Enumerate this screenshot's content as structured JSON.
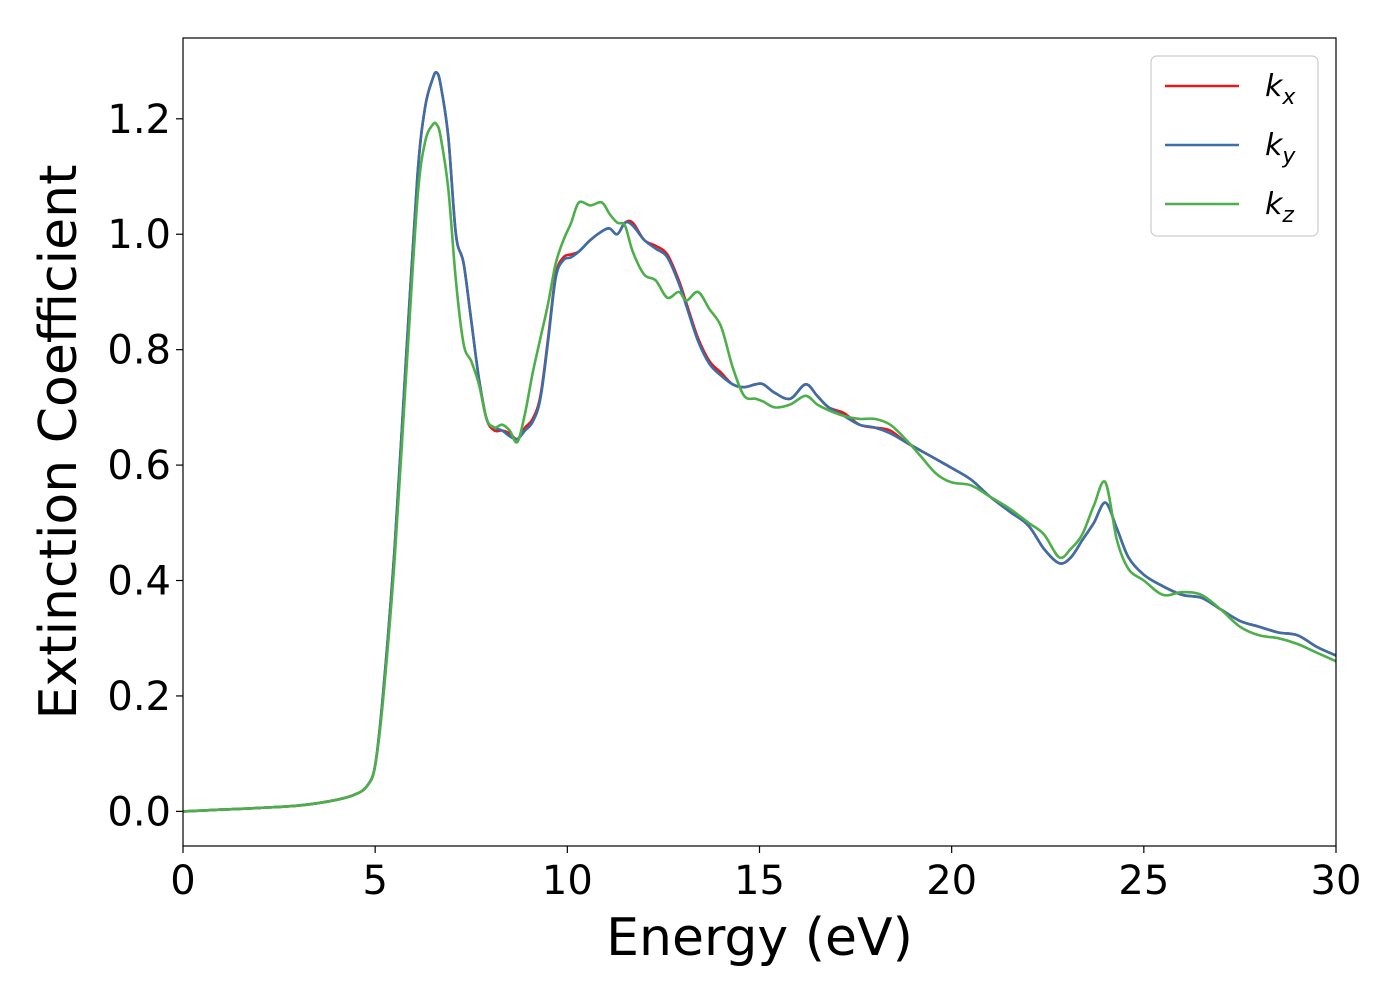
{
  "chart_data": {
    "type": "line",
    "title": "",
    "xlabel": "Energy (eV)",
    "ylabel": "Extinction Coefficient",
    "xlim": [
      0,
      30
    ],
    "ylim": [
      -0.06,
      1.34
    ],
    "xticks": [
      0,
      5,
      10,
      15,
      20,
      25,
      30
    ],
    "xtick_labels": [
      "0",
      "5",
      "10",
      "15",
      "20",
      "25",
      "30"
    ],
    "yticks": [
      0.0,
      0.2,
      0.4,
      0.6,
      0.8,
      1.0,
      1.2
    ],
    "ytick_labels": [
      "0.0",
      "0.2",
      "0.4",
      "0.6",
      "0.8",
      "1.0",
      "1.2"
    ],
    "grid": false,
    "legend_position": "top-right",
    "series": [
      {
        "name": "k",
        "name_sub": "x",
        "color": "#e41a1c",
        "x": [
          0,
          1,
          2,
          3,
          4,
          4.5,
          4.8,
          5.0,
          5.2,
          5.5,
          5.8,
          6.1,
          6.3,
          6.5,
          6.6,
          6.7,
          6.9,
          7.1,
          7.3,
          7.5,
          7.7,
          7.9,
          8.1,
          8.3,
          8.5,
          8.7,
          8.9,
          9.1,
          9.3,
          9.5,
          9.7,
          9.9,
          10.1,
          10.3,
          10.6,
          10.9,
          11.1,
          11.3,
          11.5,
          11.7,
          12.0,
          12.3,
          12.6,
          12.9,
          13.1,
          13.4,
          13.7,
          14.0,
          14.3,
          14.6,
          14.9,
          15.1,
          15.4,
          15.8,
          16.2,
          16.5,
          16.8,
          17.2,
          17.6,
          18.0,
          18.4,
          18.8,
          19.2,
          19.6,
          20.0,
          20.5,
          21.0,
          21.5,
          22.0,
          22.4,
          22.8,
          23.1,
          23.4,
          23.7,
          24.0,
          24.3,
          24.6,
          25.0,
          25.5,
          26.0,
          26.5,
          27.0,
          27.5,
          28.0,
          28.5,
          29.0,
          29.5,
          30.0
        ],
        "y": [
          0.0,
          0.003,
          0.006,
          0.01,
          0.02,
          0.03,
          0.045,
          0.08,
          0.2,
          0.45,
          0.78,
          1.1,
          1.22,
          1.27,
          1.28,
          1.26,
          1.17,
          1.0,
          0.95,
          0.85,
          0.75,
          0.68,
          0.66,
          0.66,
          0.655,
          0.645,
          0.665,
          0.68,
          0.72,
          0.82,
          0.93,
          0.96,
          0.965,
          0.97,
          0.99,
          1.005,
          1.01,
          1.0,
          1.02,
          1.02,
          0.99,
          0.98,
          0.965,
          0.92,
          0.88,
          0.82,
          0.78,
          0.76,
          0.74,
          0.735,
          0.74,
          0.74,
          0.725,
          0.715,
          0.74,
          0.72,
          0.7,
          0.69,
          0.67,
          0.665,
          0.66,
          0.64,
          0.625,
          0.61,
          0.595,
          0.575,
          0.545,
          0.52,
          0.495,
          0.455,
          0.43,
          0.44,
          0.47,
          0.5,
          0.535,
          0.49,
          0.44,
          0.41,
          0.39,
          0.375,
          0.37,
          0.35,
          0.33,
          0.32,
          0.31,
          0.305,
          0.285,
          0.27
        ]
      },
      {
        "name": "k",
        "name_sub": "y",
        "color": "#3a6fa8",
        "x": [
          0,
          1,
          2,
          3,
          4,
          4.5,
          4.8,
          5.0,
          5.2,
          5.5,
          5.8,
          6.1,
          6.3,
          6.5,
          6.6,
          6.7,
          6.9,
          7.1,
          7.3,
          7.5,
          7.7,
          7.9,
          8.1,
          8.3,
          8.5,
          8.7,
          8.9,
          9.1,
          9.3,
          9.5,
          9.7,
          9.9,
          10.1,
          10.3,
          10.6,
          10.9,
          11.1,
          11.3,
          11.5,
          11.7,
          12.0,
          12.3,
          12.6,
          12.9,
          13.1,
          13.4,
          13.7,
          14.0,
          14.3,
          14.6,
          14.9,
          15.1,
          15.4,
          15.8,
          16.2,
          16.5,
          16.8,
          17.2,
          17.6,
          18.0,
          18.4,
          18.8,
          19.2,
          19.6,
          20.0,
          20.5,
          21.0,
          21.5,
          22.0,
          22.4,
          22.8,
          23.1,
          23.4,
          23.7,
          24.0,
          24.3,
          24.6,
          25.0,
          25.5,
          26.0,
          26.5,
          27.0,
          27.5,
          28.0,
          28.5,
          29.0,
          29.5,
          30.0
        ],
        "y": [
          0.0,
          0.003,
          0.006,
          0.01,
          0.02,
          0.03,
          0.045,
          0.08,
          0.2,
          0.45,
          0.78,
          1.1,
          1.22,
          1.27,
          1.28,
          1.26,
          1.17,
          1.0,
          0.95,
          0.85,
          0.75,
          0.68,
          0.665,
          0.66,
          0.65,
          0.645,
          0.66,
          0.675,
          0.715,
          0.815,
          0.925,
          0.955,
          0.96,
          0.97,
          0.99,
          1.005,
          1.01,
          1.0,
          1.02,
          1.015,
          0.99,
          0.975,
          0.96,
          0.915,
          0.875,
          0.815,
          0.775,
          0.755,
          0.74,
          0.735,
          0.74,
          0.74,
          0.725,
          0.715,
          0.74,
          0.72,
          0.7,
          0.685,
          0.67,
          0.665,
          0.655,
          0.64,
          0.625,
          0.61,
          0.595,
          0.575,
          0.545,
          0.52,
          0.495,
          0.455,
          0.43,
          0.44,
          0.47,
          0.5,
          0.535,
          0.49,
          0.44,
          0.41,
          0.39,
          0.375,
          0.37,
          0.35,
          0.33,
          0.32,
          0.31,
          0.305,
          0.285,
          0.27
        ]
      },
      {
        "name": "k",
        "name_sub": "z",
        "color": "#4daf4a",
        "x": [
          0,
          1,
          2,
          3,
          4,
          4.5,
          4.8,
          5.0,
          5.2,
          5.5,
          5.8,
          6.1,
          6.3,
          6.5,
          6.6,
          6.7,
          6.9,
          7.1,
          7.3,
          7.5,
          7.7,
          7.9,
          8.1,
          8.3,
          8.5,
          8.7,
          8.9,
          9.1,
          9.3,
          9.5,
          9.7,
          9.9,
          10.1,
          10.3,
          10.6,
          10.9,
          11.1,
          11.3,
          11.5,
          11.7,
          12.0,
          12.3,
          12.6,
          12.9,
          13.1,
          13.4,
          13.7,
          14.0,
          14.3,
          14.6,
          14.9,
          15.1,
          15.4,
          15.8,
          16.2,
          16.5,
          16.8,
          17.2,
          17.6,
          18.0,
          18.4,
          18.8,
          19.2,
          19.6,
          20.0,
          20.5,
          21.0,
          21.5,
          22.0,
          22.4,
          22.8,
          23.1,
          23.4,
          23.7,
          24.0,
          24.3,
          24.6,
          25.0,
          25.5,
          26.0,
          26.5,
          27.0,
          27.5,
          28.0,
          28.5,
          29.0,
          29.5,
          30.0
        ],
        "y": [
          0.0,
          0.003,
          0.006,
          0.01,
          0.02,
          0.03,
          0.045,
          0.08,
          0.19,
          0.43,
          0.75,
          1.06,
          1.16,
          1.19,
          1.19,
          1.17,
          1.08,
          0.92,
          0.81,
          0.78,
          0.74,
          0.68,
          0.665,
          0.67,
          0.66,
          0.64,
          0.69,
          0.76,
          0.82,
          0.88,
          0.95,
          0.99,
          1.02,
          1.055,
          1.05,
          1.055,
          1.035,
          1.02,
          1.015,
          0.97,
          0.93,
          0.92,
          0.89,
          0.9,
          0.885,
          0.9,
          0.87,
          0.84,
          0.77,
          0.72,
          0.715,
          0.71,
          0.7,
          0.705,
          0.72,
          0.705,
          0.695,
          0.685,
          0.68,
          0.68,
          0.67,
          0.645,
          0.615,
          0.585,
          0.57,
          0.565,
          0.545,
          0.525,
          0.5,
          0.48,
          0.44,
          0.455,
          0.48,
          0.53,
          0.57,
          0.47,
          0.42,
          0.4,
          0.375,
          0.38,
          0.375,
          0.35,
          0.32,
          0.305,
          0.3,
          0.29,
          0.275,
          0.26
        ]
      }
    ]
  }
}
